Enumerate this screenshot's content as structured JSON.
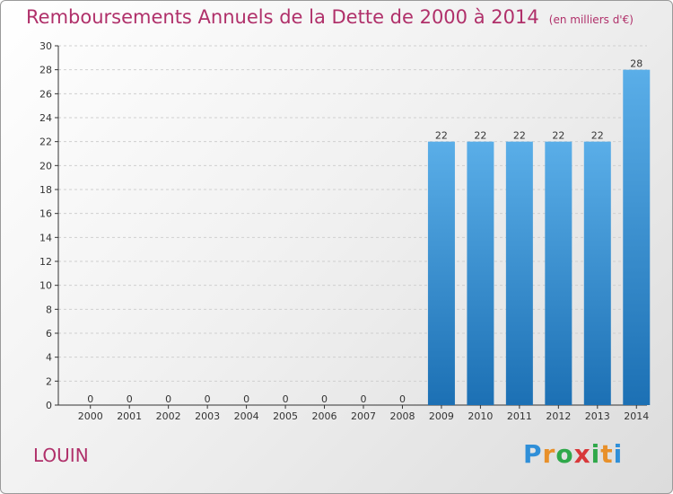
{
  "title": "Remboursements Annuels de la Dette de 2000 à 2014",
  "unit": "(en milliers d'€)",
  "commune": "LOUIN",
  "brand": {
    "letters": [
      "P",
      "r",
      "o",
      "x",
      "i",
      "t",
      "i"
    ],
    "colors": [
      "#2f8fd8",
      "#e8902a",
      "#2fa84a",
      "#d8383a",
      "#2fa84a",
      "#e8902a",
      "#2f8fd8"
    ]
  },
  "colors": {
    "bar_light": "#5aaee8",
    "bar_dark": "#1c70b4",
    "title": "#b0306a"
  },
  "chart_data": {
    "type": "bar",
    "categories": [
      "2000",
      "2001",
      "2002",
      "2003",
      "2004",
      "2005",
      "2006",
      "2007",
      "2008",
      "2009",
      "2010",
      "2011",
      "2012",
      "2013",
      "2014"
    ],
    "values": [
      0,
      0,
      0,
      0,
      0,
      0,
      0,
      0,
      0,
      22,
      22,
      22,
      22,
      22,
      28
    ],
    "title": "Remboursements Annuels de la Dette de 2000 à 2014",
    "ylim": [
      0,
      30
    ],
    "yticks": [
      0,
      2,
      4,
      6,
      8,
      10,
      12,
      14,
      16,
      18,
      20,
      22,
      24,
      26,
      28,
      30
    ],
    "grid": true
  }
}
